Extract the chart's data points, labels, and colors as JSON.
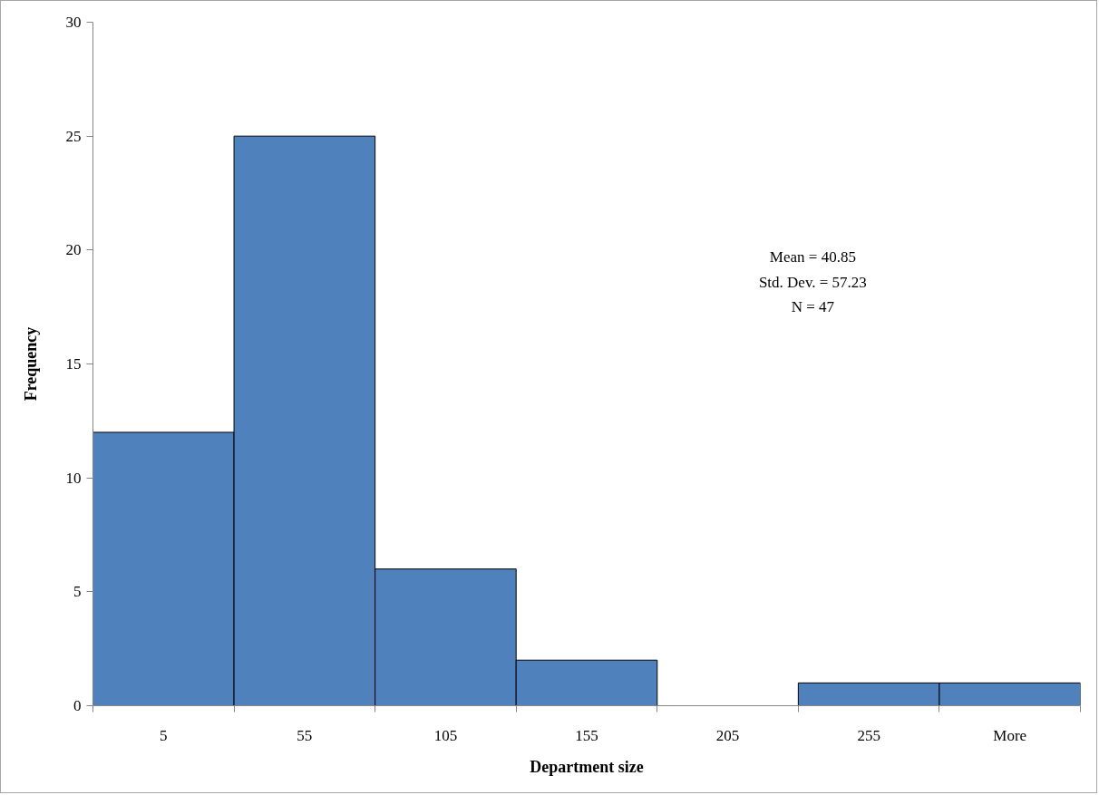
{
  "chart_data": {
    "type": "bar",
    "categories": [
      "5",
      "55",
      "105",
      "155",
      "205",
      "255",
      "More"
    ],
    "values": [
      12,
      25,
      6,
      2,
      0,
      1,
      1
    ],
    "color": "#4f81bd",
    "xlabel": "Department size",
    "ylabel": "Frequency",
    "ylim": [
      0,
      30
    ],
    "yticks": [
      0,
      5,
      10,
      15,
      20,
      25,
      30
    ],
    "grid": false,
    "annotations": [
      "Mean = 40.85",
      "Std. Dev. = 57.23",
      "N = 47"
    ]
  }
}
